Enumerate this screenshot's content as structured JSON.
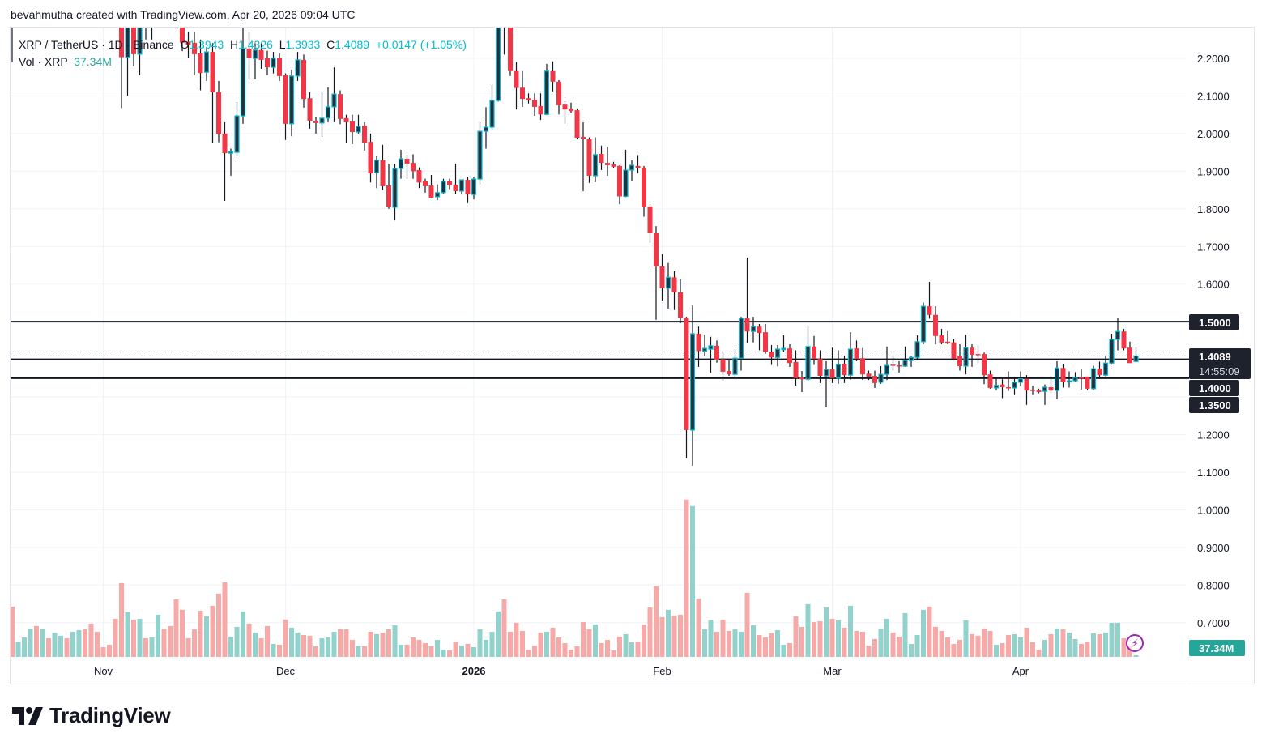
{
  "attribution": "bevahmutha created with TradingView.com, Apr 20, 2026 09:04 UTC",
  "legend": {
    "symbol": "XRP / TetherUS · 1D · Binance",
    "o_label": "O",
    "o": "1.3943",
    "h_label": "H",
    "h": "1.4326",
    "l_label": "L",
    "l": "1.3933",
    "c_label": "C",
    "c": "1.4089",
    "change": "+0.0147 (+1.05%)",
    "vol_label": "Vol · XRP",
    "vol_value": "37.34M"
  },
  "logo": "TradingView",
  "icons": {
    "alert": "lightning-icon",
    "logo": "tradingview-logo-icon"
  },
  "colors": {
    "up_body": "#2a2e39",
    "up_border": "#00bcd4",
    "down": "#f23645",
    "vol_up": "#92d2cc",
    "vol_down": "#f7a9a7",
    "volume_badge": "#26a69a",
    "price_badge": "#1e222d"
  },
  "chart_data": {
    "type": "candlestick",
    "symbol": "XRP / TetherUS",
    "interval": "1D",
    "x_range": [
      "2025-10-17",
      "2026-04-20"
    ],
    "x_ticks": [
      {
        "label": "Nov",
        "date": "2025-11-01"
      },
      {
        "label": "Dec",
        "date": "2025-12-01"
      },
      {
        "label": "2026",
        "date": "2026-01-01"
      },
      {
        "label": "Feb",
        "date": "2026-02-01"
      },
      {
        "label": "Mar",
        "date": "2026-03-01"
      },
      {
        "label": "Apr",
        "date": "2026-04-01"
      }
    ],
    "y_ticks": [
      {
        "value": 2.2,
        "label": "2.2000"
      },
      {
        "value": 2.1,
        "label": "2.1000"
      },
      {
        "value": 2.0,
        "label": "2.0000"
      },
      {
        "value": 1.9,
        "label": "1.9000"
      },
      {
        "value": 1.8,
        "label": "1.8000"
      },
      {
        "value": 1.7,
        "label": "1.7000"
      },
      {
        "value": 1.6,
        "label": "1.6000"
      },
      {
        "value": 1.2,
        "label": "1.2000"
      },
      {
        "value": 1.1,
        "label": "1.1000"
      },
      {
        "value": 1.0,
        "label": "1.0000"
      },
      {
        "value": 0.9,
        "label": "0.9000"
      },
      {
        "value": 0.8,
        "label": "0.8000"
      },
      {
        "value": 0.7,
        "label": "0.7000"
      }
    ],
    "y_range": [
      0.65,
      2.28
    ],
    "grid": true,
    "levels": [
      {
        "value": 1.5,
        "label": "1.5000"
      },
      {
        "value": 1.4,
        "label": "1.4000"
      },
      {
        "value": 1.35,
        "label": "1.3500"
      }
    ],
    "last_price": {
      "value": 1.4089,
      "label": "1.4089",
      "countdown": "14:55:09"
    },
    "last_volume_label": "37.34M",
    "volume_unit": "M XRP",
    "ohlcv": [
      [
        2.39,
        2.42,
        2.19,
        2.35,
        1159
      ],
      [
        2.35,
        2.41,
        2.33,
        2.38,
        355
      ],
      [
        2.38,
        2.44,
        2.34,
        2.41,
        449
      ],
      [
        2.41,
        2.51,
        2.38,
        2.48,
        655
      ],
      [
        2.48,
        2.5,
        2.35,
        2.39,
        711
      ],
      [
        2.39,
        2.46,
        2.37,
        2.43,
        655
      ],
      [
        2.43,
        2.48,
        2.36,
        2.38,
        430
      ],
      [
        2.38,
        2.52,
        2.37,
        2.5,
        561
      ],
      [
        2.5,
        2.68,
        2.48,
        2.64,
        486
      ],
      [
        2.64,
        2.66,
        2.55,
        2.61,
        430
      ],
      [
        2.61,
        2.67,
        2.56,
        2.63,
        580
      ],
      [
        2.63,
        2.71,
        2.58,
        2.66,
        617
      ],
      [
        2.66,
        2.69,
        2.58,
        2.6,
        636
      ],
      [
        2.6,
        2.63,
        2.5,
        2.52,
        767
      ],
      [
        2.52,
        2.56,
        2.45,
        2.5,
        580
      ],
      [
        2.5,
        2.53,
        2.46,
        2.49,
        224
      ],
      [
        2.49,
        2.52,
        2.43,
        2.47,
        281
      ],
      [
        2.47,
        2.5,
        2.29,
        2.33,
        879
      ],
      [
        2.33,
        2.36,
        2.068,
        2.203,
        1702
      ],
      [
        2.203,
        2.33,
        2.1,
        2.3,
        1029
      ],
      [
        2.3,
        2.32,
        2.179,
        2.211,
        860
      ],
      [
        2.211,
        2.36,
        2.155,
        2.33,
        879
      ],
      [
        2.33,
        2.35,
        2.25,
        2.29,
        430
      ],
      [
        2.29,
        2.36,
        2.25,
        2.34,
        449
      ],
      [
        2.34,
        2.55,
        2.32,
        2.52,
        972
      ],
      [
        2.52,
        2.55,
        2.38,
        2.41,
        636
      ],
      [
        2.41,
        2.49,
        2.36,
        2.38,
        711
      ],
      [
        2.38,
        2.44,
        2.28,
        2.31,
        1328
      ],
      [
        2.31,
        2.33,
        2.219,
        2.2415,
        1085
      ],
      [
        2.244,
        2.27,
        2.2,
        2.235,
        430
      ],
      [
        2.241,
        2.27,
        2.155,
        2.211,
        636
      ],
      [
        2.213,
        2.25,
        2.115,
        2.161,
        1066
      ],
      [
        2.163,
        2.23,
        2.14,
        2.217,
        935
      ],
      [
        2.217,
        2.24,
        1.976,
        2.11,
        1178
      ],
      [
        2.11,
        2.14,
        1.977,
        1.998,
        1459
      ],
      [
        2.0,
        2.03,
        1.821,
        1.948,
        1720
      ],
      [
        1.948,
        1.96,
        1.888,
        1.952,
        468
      ],
      [
        1.95,
        2.084,
        1.94,
        2.047,
        692
      ],
      [
        2.047,
        2.3,
        2.026,
        2.226,
        1047
      ],
      [
        2.226,
        2.27,
        2.146,
        2.2,
        767
      ],
      [
        2.2,
        2.24,
        2.144,
        2.222,
        561
      ],
      [
        2.222,
        2.24,
        2.172,
        2.196,
        430
      ],
      [
        2.2,
        2.22,
        2.155,
        2.176,
        711
      ],
      [
        2.176,
        2.217,
        2.16,
        2.2,
        299
      ],
      [
        2.2,
        2.213,
        2.14,
        2.153,
        281
      ],
      [
        2.155,
        2.16,
        1.983,
        2.026,
        860
      ],
      [
        2.026,
        2.17,
        1.993,
        2.153,
        673
      ],
      [
        2.153,
        2.217,
        2.14,
        2.196,
        561
      ],
      [
        2.196,
        2.21,
        2.069,
        2.092,
        505
      ],
      [
        2.094,
        2.11,
        2.013,
        2.034,
        486
      ],
      [
        2.034,
        2.045,
        2.0,
        2.028,
        243
      ],
      [
        2.028,
        2.112,
        1.991,
        2.041,
        430
      ],
      [
        2.041,
        2.123,
        2.03,
        2.071,
        449
      ],
      [
        2.071,
        2.176,
        2.03,
        2.105,
        580
      ],
      [
        2.105,
        2.115,
        2.025,
        2.039,
        636
      ],
      [
        2.041,
        2.05,
        1.976,
        2.03,
        636
      ],
      [
        2.032,
        2.05,
        1.972,
        2.004,
        393
      ],
      [
        2.004,
        2.05,
        2.0,
        2.019,
        243
      ],
      [
        2.021,
        2.03,
        1.955,
        1.976,
        243
      ],
      [
        1.978,
        2.0,
        1.87,
        1.894,
        580
      ],
      [
        1.896,
        1.94,
        1.855,
        1.929,
        524
      ],
      [
        1.929,
        1.97,
        1.85,
        1.86,
        561
      ],
      [
        1.862,
        1.92,
        1.8,
        1.804,
        636
      ],
      [
        1.804,
        1.92,
        1.769,
        1.907,
        729
      ],
      [
        1.907,
        1.957,
        1.88,
        1.933,
        281
      ],
      [
        1.933,
        1.943,
        1.88,
        1.92,
        281
      ],
      [
        1.922,
        1.945,
        1.88,
        1.9,
        449
      ],
      [
        1.903,
        1.91,
        1.855,
        1.87,
        393
      ],
      [
        1.873,
        1.88,
        1.843,
        1.86,
        318
      ],
      [
        1.862,
        1.89,
        1.828,
        1.83,
        243
      ],
      [
        1.832,
        1.865,
        1.823,
        1.843,
        393
      ],
      [
        1.843,
        1.88,
        1.84,
        1.873,
        168
      ],
      [
        1.873,
        1.88,
        1.852,
        1.862,
        150
      ],
      [
        1.864,
        1.92,
        1.84,
        1.847,
        355
      ],
      [
        1.847,
        1.87,
        1.838,
        1.877,
        262
      ],
      [
        1.877,
        1.884,
        1.815,
        1.838,
        299
      ],
      [
        1.838,
        1.885,
        1.825,
        1.879,
        224
      ],
      [
        1.879,
        2.03,
        1.865,
        2.006,
        636
      ],
      [
        2.006,
        2.07,
        1.96,
        2.017,
        393
      ],
      [
        2.017,
        2.13,
        2.01,
        2.088,
        580
      ],
      [
        2.088,
        2.35,
        2.085,
        2.33,
        1047
      ],
      [
        2.33,
        2.41,
        2.21,
        2.3,
        1328
      ],
      [
        2.3,
        2.32,
        2.153,
        2.166,
        580
      ],
      [
        2.166,
        2.19,
        2.064,
        2.121,
        785
      ],
      [
        2.122,
        2.166,
        2.071,
        2.092,
        598
      ],
      [
        2.094,
        2.107,
        2.08,
        2.088,
        168
      ],
      [
        2.09,
        2.107,
        2.047,
        2.071,
        262
      ],
      [
        2.073,
        2.107,
        2.036,
        2.051,
        561
      ],
      [
        2.051,
        2.185,
        2.049,
        2.166,
        580
      ],
      [
        2.166,
        2.192,
        2.112,
        2.138,
        673
      ],
      [
        2.138,
        2.142,
        2.051,
        2.075,
        449
      ],
      [
        2.077,
        2.086,
        2.027,
        2.064,
        318
      ],
      [
        2.066,
        2.082,
        2.055,
        2.06,
        168
      ],
      [
        2.062,
        2.066,
        1.985,
        1.989,
        243
      ],
      [
        1.991,
        2.03,
        1.847,
        1.985,
        804
      ],
      [
        1.985,
        1.99,
        1.869,
        1.888,
        636
      ],
      [
        1.888,
        1.99,
        1.871,
        1.944,
        748
      ],
      [
        1.946,
        1.968,
        1.903,
        1.922,
        318
      ],
      [
        1.922,
        1.965,
        1.888,
        1.916,
        393
      ],
      [
        1.918,
        1.925,
        1.909,
        1.912,
        150
      ],
      [
        1.914,
        1.916,
        1.812,
        1.833,
        468
      ],
      [
        1.833,
        1.957,
        1.831,
        1.903,
        524
      ],
      [
        1.903,
        1.929,
        1.873,
        1.916,
        337
      ],
      [
        1.914,
        1.943,
        1.895,
        1.908,
        355
      ],
      [
        1.909,
        1.914,
        1.779,
        1.804,
        748
      ],
      [
        1.806,
        1.812,
        1.71,
        1.735,
        1141
      ],
      [
        1.735,
        1.754,
        1.505,
        1.647,
        1627
      ],
      [
        1.647,
        1.68,
        1.556,
        1.589,
        916
      ],
      [
        1.589,
        1.656,
        1.535,
        1.618,
        1085
      ],
      [
        1.618,
        1.634,
        1.531,
        1.578,
        954
      ],
      [
        1.578,
        1.613,
        1.496,
        1.51,
        972
      ],
      [
        1.51,
        1.513,
        1.137,
        1.212,
        3628
      ],
      [
        1.212,
        1.543,
        1.117,
        1.468,
        3478
      ],
      [
        1.468,
        1.487,
        1.38,
        1.422,
        1346
      ],
      [
        1.422,
        1.466,
        1.408,
        1.429,
        636
      ],
      [
        1.427,
        1.46,
        1.364,
        1.436,
        842
      ],
      [
        1.436,
        1.45,
        1.391,
        1.399,
        580
      ],
      [
        1.4,
        1.419,
        1.343,
        1.367,
        860
      ],
      [
        1.369,
        1.397,
        1.356,
        1.36,
        598
      ],
      [
        1.36,
        1.427,
        1.35,
        1.403,
        636
      ],
      [
        1.403,
        1.513,
        1.37,
        1.509,
        580
      ],
      [
        1.509,
        1.67,
        1.443,
        1.474,
        1477
      ],
      [
        1.474,
        1.513,
        1.445,
        1.487,
        729
      ],
      [
        1.487,
        1.494,
        1.424,
        1.47,
        505
      ],
      [
        1.472,
        1.494,
        1.415,
        1.42,
        449
      ],
      [
        1.42,
        1.438,
        1.385,
        1.405,
        542
      ],
      [
        1.405,
        1.438,
        1.381,
        1.427,
        617
      ],
      [
        1.428,
        1.464,
        1.42,
        1.429,
        281
      ],
      [
        1.429,
        1.44,
        1.38,
        1.39,
        318
      ],
      [
        1.393,
        1.424,
        1.33,
        1.35,
        935
      ],
      [
        1.352,
        1.369,
        1.313,
        1.347,
        692
      ],
      [
        1.347,
        1.487,
        1.342,
        1.434,
        1216
      ],
      [
        1.434,
        1.462,
        1.385,
        1.401,
        804
      ],
      [
        1.401,
        1.424,
        1.337,
        1.356,
        823
      ],
      [
        1.356,
        1.395,
        1.272,
        1.373,
        1141
      ],
      [
        1.373,
        1.431,
        1.337,
        1.35,
        879
      ],
      [
        1.35,
        1.424,
        1.335,
        1.386,
        842
      ],
      [
        1.388,
        1.41,
        1.337,
        1.358,
        673
      ],
      [
        1.358,
        1.472,
        1.346,
        1.427,
        1178
      ],
      [
        1.429,
        1.45,
        1.395,
        1.401,
        598
      ],
      [
        1.403,
        1.43,
        1.345,
        1.36,
        580
      ],
      [
        1.362,
        1.37,
        1.345,
        1.354,
        262
      ],
      [
        1.356,
        1.37,
        1.324,
        1.337,
        411
      ],
      [
        1.339,
        1.382,
        1.335,
        1.36,
        655
      ],
      [
        1.36,
        1.434,
        1.345,
        1.384,
        879
      ],
      [
        1.386,
        1.41,
        1.37,
        1.384,
        561
      ],
      [
        1.384,
        1.395,
        1.365,
        1.383,
        468
      ],
      [
        1.382,
        1.434,
        1.38,
        1.397,
        1010
      ],
      [
        1.397,
        1.41,
        1.38,
        1.405,
        299
      ],
      [
        1.405,
        1.464,
        1.4,
        1.447,
        505
      ],
      [
        1.447,
        1.551,
        1.44,
        1.541,
        1085
      ],
      [
        1.541,
        1.606,
        1.508,
        1.518,
        1159
      ],
      [
        1.518,
        1.541,
        1.44,
        1.462,
        692
      ],
      [
        1.464,
        1.481,
        1.44,
        1.444,
        598
      ],
      [
        1.447,
        1.475,
        1.44,
        1.442,
        449
      ],
      [
        1.445,
        1.454,
        1.4,
        1.402,
        299
      ],
      [
        1.408,
        1.44,
        1.37,
        1.382,
        393
      ],
      [
        1.382,
        1.466,
        1.36,
        1.431,
        842
      ],
      [
        1.431,
        1.44,
        1.38,
        1.412,
        524
      ],
      [
        1.414,
        1.437,
        1.39,
        1.412,
        486
      ],
      [
        1.414,
        1.418,
        1.334,
        1.358,
        655
      ],
      [
        1.36,
        1.37,
        1.322,
        1.324,
        598
      ],
      [
        1.324,
        1.353,
        1.318,
        1.331,
        281
      ],
      [
        1.333,
        1.347,
        1.297,
        1.326,
        318
      ],
      [
        1.326,
        1.368,
        1.316,
        1.324,
        505
      ],
      [
        1.324,
        1.351,
        1.305,
        1.339,
        524
      ],
      [
        1.339,
        1.368,
        1.33,
        1.348,
        449
      ],
      [
        1.348,
        1.358,
        1.279,
        1.317,
        673
      ],
      [
        1.319,
        1.33,
        1.305,
        1.317,
        337
      ],
      [
        1.317,
        1.322,
        1.31,
        1.313,
        168
      ],
      [
        1.315,
        1.333,
        1.279,
        1.326,
        393
      ],
      [
        1.326,
        1.356,
        1.31,
        1.317,
        524
      ],
      [
        1.317,
        1.395,
        1.294,
        1.377,
        655
      ],
      [
        1.377,
        1.388,
        1.325,
        1.339,
        636
      ],
      [
        1.342,
        1.368,
        1.325,
        1.343,
        561
      ],
      [
        1.343,
        1.366,
        1.34,
        1.352,
        411
      ],
      [
        1.352,
        1.373,
        1.32,
        1.35,
        299
      ],
      [
        1.354,
        1.354,
        1.318,
        1.322,
        355
      ],
      [
        1.322,
        1.383,
        1.318,
        1.375,
        542
      ],
      [
        1.375,
        1.394,
        1.354,
        1.358,
        524
      ],
      [
        1.358,
        1.41,
        1.355,
        1.39,
        561
      ],
      [
        1.39,
        1.468,
        1.386,
        1.453,
        785
      ],
      [
        1.453,
        1.509,
        1.424,
        1.474,
        785
      ],
      [
        1.474,
        1.481,
        1.424,
        1.429,
        430
      ],
      [
        1.431,
        1.447,
        1.39,
        1.39,
        262
      ],
      [
        1.3943,
        1.4326,
        1.3933,
        1.4089,
        37.34
      ]
    ]
  }
}
